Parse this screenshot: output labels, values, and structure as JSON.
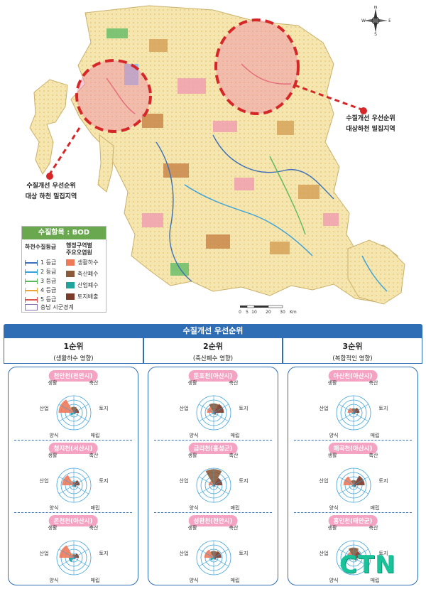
{
  "compass": {
    "n": "N",
    "s": "S",
    "e": "E",
    "w": "W"
  },
  "callouts": [
    {
      "line1": "수질개선 우선순위",
      "line2": "대상 하천 밀집지역"
    },
    {
      "line1": "수질개선 우선순위",
      "line2": "대상하천 밀집지역"
    }
  ],
  "legend": {
    "title": "수질항목 : BOD",
    "grade_head": "하천수질등급",
    "region_head1": "행정구역별",
    "region_head2": "주요오염원",
    "grades": [
      {
        "label": "1 등급",
        "color": "#3b6fb6"
      },
      {
        "label": "2 등급",
        "color": "#3aa0d8"
      },
      {
        "label": "3 등급",
        "color": "#5cb85c"
      },
      {
        "label": "4 등급",
        "color": "#e8a33a"
      },
      {
        "label": "5 등급",
        "color": "#d9534f"
      }
    ],
    "sources": [
      {
        "label": "생활하수",
        "color": "#ef7a5a"
      },
      {
        "label": "축산폐수",
        "color": "#8a5a3a"
      },
      {
        "label": "산업폐수",
        "color": "#1fa39a"
      },
      {
        "label": "토지배출",
        "color": "#7a3b2a"
      }
    ],
    "boundary": "충남 시군경계"
  },
  "scalebar": {
    "ticks": [
      "0",
      "5",
      "10",
      "20",
      "30"
    ],
    "unit": "Km"
  },
  "priority": {
    "title": "수질개선 우선순위",
    "ranks": [
      {
        "rank": "1순위",
        "desc": "(생활하수 영향)"
      },
      {
        "rank": "2순위",
        "desc": "(축산폐수 영향)"
      },
      {
        "rank": "3순위",
        "desc": "(복합적인 영향)"
      }
    ],
    "axes": {
      "top_left": "생활",
      "top_right": "축산",
      "left": "산업",
      "right": "토지",
      "bottom_left": "양식",
      "bottom_right": "매립"
    },
    "streams": [
      [
        {
          "name": "천안천(천안시)",
          "values": {
            "생활": 0.9,
            "축산": 0.35,
            "토지": 0.3,
            "매립": 0.1,
            "양식": 0.05,
            "산업": 0.2
          }
        },
        {
          "name": "청지천(서산시)",
          "values": {
            "생활": 0.7,
            "축산": 0.2,
            "토지": 0.35,
            "매립": 0.15,
            "양식": 0.05,
            "산업": 0.1
          }
        },
        {
          "name": "온천천(아산시)",
          "values": {
            "생활": 0.85,
            "축산": 0.2,
            "토지": 0.3,
            "매립": 0.1,
            "양식": 0.05,
            "산업": 0.3
          }
        }
      ],
      [
        {
          "name": "둔포천(아산시)",
          "values": {
            "생활": 0.4,
            "축산": 0.55,
            "토지": 0.6,
            "매립": 0.15,
            "양식": 0.05,
            "산업": 0.1
          }
        },
        {
          "name": "금리천(홍성군)",
          "values": {
            "생활": 0.3,
            "축산": 0.95,
            "토지": 0.5,
            "매립": 0.1,
            "양식": 0.05,
            "산업": 0.05
          }
        },
        {
          "name": "성환천(천안시)",
          "values": {
            "생활": 0.55,
            "축산": 0.4,
            "토지": 0.45,
            "매립": 0.15,
            "양식": 0.05,
            "산업": 0.2
          }
        }
      ],
      [
        {
          "name": "아산천(아산시)",
          "values": {
            "생활": 0.35,
            "축산": 0.25,
            "토지": 0.35,
            "매립": 0.1,
            "양식": 0.05,
            "산업": 0.1
          }
        },
        {
          "name": "매곡천(아산시)",
          "values": {
            "생활": 0.6,
            "축산": 0.3,
            "토지": 0.65,
            "매립": 0.15,
            "양식": 0.05,
            "산업": 0.1
          }
        },
        {
          "name": "홍인천(태안군)",
          "values": {
            "생활": 0.4,
            "축산": 0.6,
            "토지": 0.45,
            "매립": 0.2,
            "양식": 0.1,
            "산업": 0.15
          }
        }
      ]
    ]
  },
  "watermark": "CTN"
}
